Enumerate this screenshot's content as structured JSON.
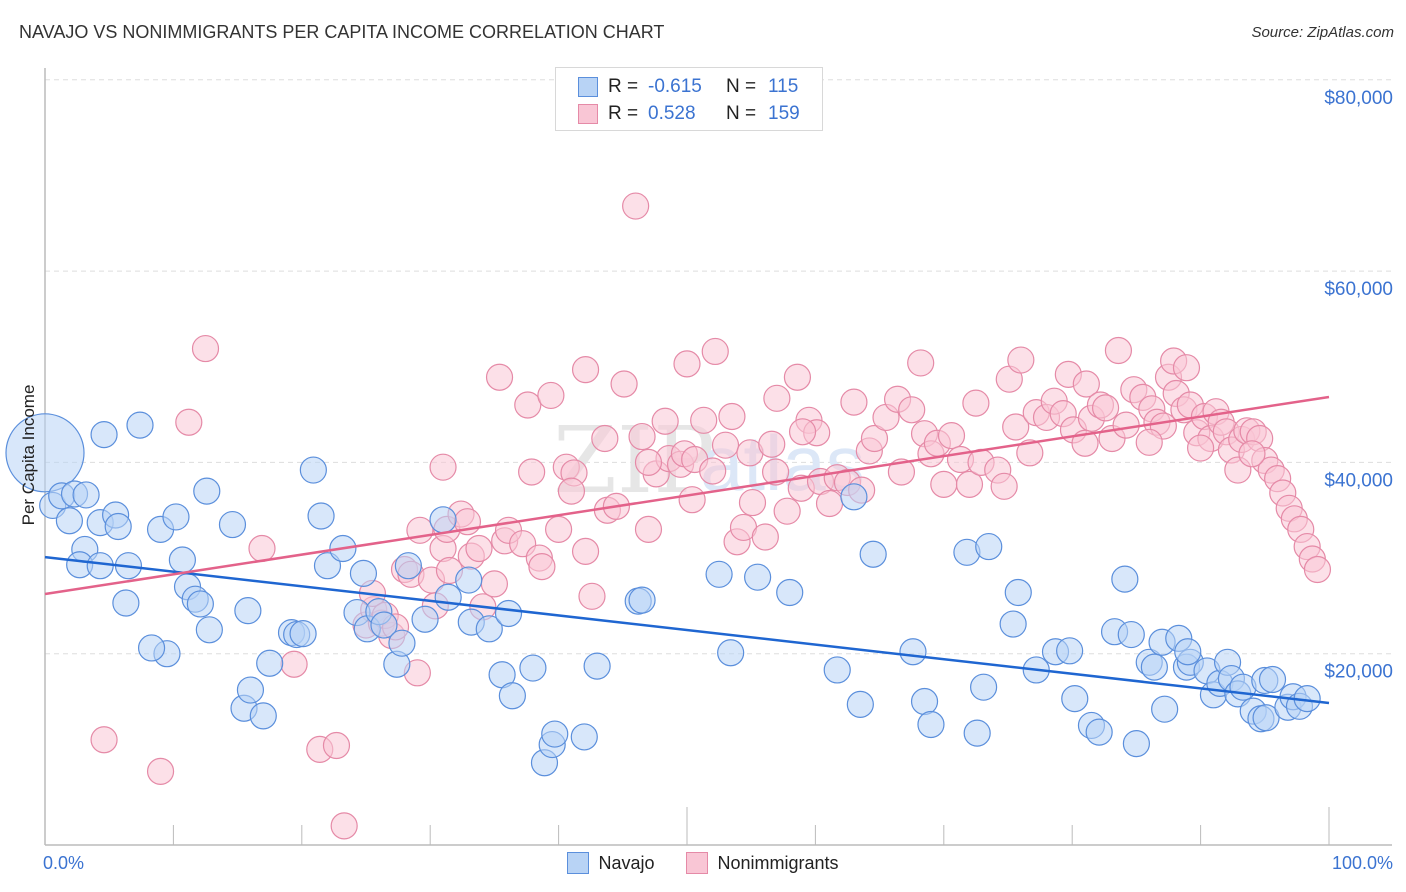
{
  "header": {
    "title": "NAVAJO VS NONIMMIGRANTS PER CAPITA INCOME CORRELATION CHART",
    "source": "Source: ZipAtlas.com"
  },
  "colors": {
    "navajo_fill": "#b8d3f5",
    "navajo_stroke": "#5b8fdc",
    "navajo_line": "#1f66d1",
    "nonimmigrants_fill": "#f9c6d5",
    "nonimmigrants_stroke": "#e58aa7",
    "nonimmigrants_line": "#e3628a",
    "axis_label": "#3b73d1"
  },
  "legend": {
    "rows": [
      {
        "series": "Navajo",
        "r_label": "R =",
        "r_value": "-0.615",
        "n_label": "N =",
        "n_value": "115"
      },
      {
        "series": "Nonimmigrants",
        "r_label": "R =",
        "r_value": "0.528",
        "n_label": "N =",
        "n_value": "159"
      }
    ],
    "bottom": [
      "Navajo",
      "Nonimmigrants"
    ]
  },
  "watermark": {
    "part1": "ZIP",
    "part2": "atlas"
  },
  "chart_data": {
    "type": "scatter",
    "title": "NAVAJO VS NONIMMIGRANTS PER CAPITA INCOME CORRELATION CHART",
    "xlabel": "",
    "ylabel": "Per Capita Income",
    "xlim": [
      0,
      100
    ],
    "ylim": [
      0,
      82000
    ],
    "x_tick_labels": [
      "0.0%",
      "100.0%"
    ],
    "y_ticks": [
      20000,
      40000,
      60000,
      80000
    ],
    "y_tick_labels": [
      "$20,000",
      "$40,000",
      "$60,000",
      "$80,000"
    ],
    "grid": true,
    "legend_position": "top-center",
    "series": [
      {
        "name": "Navajo",
        "r": -0.615,
        "n": 115,
        "trend": {
          "x": [
            0,
            100
          ],
          "y": [
            30100,
            14850
          ]
        },
        "points": [
          [
            0,
            41000,
            3
          ],
          [
            0.6,
            35500
          ],
          [
            1.3,
            36500
          ],
          [
            2.3,
            36700
          ],
          [
            3.1,
            30900
          ],
          [
            2.7,
            29300
          ],
          [
            4.3,
            29200
          ],
          [
            1.9,
            33900
          ],
          [
            4.3,
            33700
          ],
          [
            5.5,
            34500
          ],
          [
            5.7,
            33300
          ],
          [
            6.5,
            29200
          ],
          [
            3.2,
            36600
          ],
          [
            4.6,
            42900
          ],
          [
            7.4,
            43900
          ],
          [
            9.0,
            33000
          ],
          [
            10.2,
            34300
          ],
          [
            10.7,
            29800
          ],
          [
            11.1,
            27000
          ],
          [
            11.7,
            25700
          ],
          [
            12.1,
            25200
          ],
          [
            12.6,
            37000
          ],
          [
            14.6,
            33500
          ],
          [
            15.8,
            24500
          ],
          [
            6.3,
            25300
          ],
          [
            9.5,
            20000
          ],
          [
            8.3,
            20600
          ],
          [
            12.8,
            22500
          ],
          [
            15.5,
            14300
          ],
          [
            16.0,
            16200
          ],
          [
            17.0,
            13500
          ],
          [
            17.5,
            19000
          ],
          [
            19.2,
            22200
          ],
          [
            19.6,
            22000
          ],
          [
            20.1,
            22100
          ],
          [
            20.9,
            39200
          ],
          [
            21.5,
            34400
          ],
          [
            22.0,
            29200
          ],
          [
            23.2,
            31000
          ],
          [
            24.3,
            24300
          ],
          [
            24.8,
            28400
          ],
          [
            25.1,
            22600
          ],
          [
            26.0,
            24400
          ],
          [
            26.4,
            23000
          ],
          [
            27.4,
            18900
          ],
          [
            27.8,
            21100
          ],
          [
            28.3,
            29200
          ],
          [
            29.6,
            23600
          ],
          [
            31.0,
            34000
          ],
          [
            31.4,
            25900
          ],
          [
            33.0,
            27700
          ],
          [
            33.2,
            23300
          ],
          [
            34.6,
            22600
          ],
          [
            35.6,
            17800
          ],
          [
            36.1,
            24200
          ],
          [
            36.4,
            15600
          ],
          [
            38.0,
            18500
          ],
          [
            38.9,
            8600
          ],
          [
            39.5,
            10500
          ],
          [
            39.7,
            11600
          ],
          [
            42.0,
            11300
          ],
          [
            43.0,
            18700
          ],
          [
            46.2,
            25500
          ],
          [
            46.5,
            25600
          ],
          [
            52.5,
            28300
          ],
          [
            53.4,
            20100
          ],
          [
            55.5,
            28000
          ],
          [
            58.0,
            26400
          ],
          [
            61.7,
            18300
          ],
          [
            63.0,
            36400
          ],
          [
            63.5,
            14700
          ],
          [
            64.5,
            30400
          ],
          [
            67.6,
            20200
          ],
          [
            68.5,
            15000
          ],
          [
            69.0,
            12600
          ],
          [
            71.8,
            30600
          ],
          [
            72.6,
            11700
          ],
          [
            73.5,
            31200
          ],
          [
            73.1,
            16500
          ],
          [
            75.4,
            23100
          ],
          [
            75.8,
            26400
          ],
          [
            77.2,
            18300
          ],
          [
            78.7,
            20200
          ],
          [
            79.8,
            20300
          ],
          [
            80.2,
            15300
          ],
          [
            81.5,
            12500
          ],
          [
            82.1,
            11800
          ],
          [
            83.3,
            22300
          ],
          [
            84.6,
            22000
          ],
          [
            84.1,
            27800
          ],
          [
            85.0,
            10600
          ],
          [
            86.0,
            19100
          ],
          [
            86.4,
            18600
          ],
          [
            87.0,
            21200
          ],
          [
            87.2,
            14200
          ],
          [
            88.3,
            21600
          ],
          [
            88.9,
            18600
          ],
          [
            89.2,
            19100
          ],
          [
            89.0,
            20200
          ],
          [
            90.5,
            18200
          ],
          [
            91.0,
            15700
          ],
          [
            91.5,
            16900
          ],
          [
            92.1,
            19100
          ],
          [
            92.4,
            17400
          ],
          [
            92.9,
            15800
          ],
          [
            93.3,
            16500
          ],
          [
            94.1,
            14000
          ],
          [
            94.7,
            13200
          ],
          [
            95.1,
            13300
          ],
          [
            95.0,
            17200
          ],
          [
            95.6,
            17300
          ],
          [
            96.8,
            14400
          ],
          [
            97.2,
            15500
          ],
          [
            97.7,
            14500
          ],
          [
            98.3,
            15300
          ]
        ]
      },
      {
        "name": "Nonimmigrants",
        "r": 0.528,
        "n": 159,
        "trend": {
          "x": [
            0,
            100
          ],
          "y": [
            26240,
            46840
          ]
        },
        "points": [
          [
            12.5,
            51900
          ],
          [
            11.2,
            44200
          ],
          [
            4.6,
            11000
          ],
          [
            9.0,
            7700
          ],
          [
            16.9,
            31000
          ],
          [
            19.4,
            18900
          ],
          [
            21.4,
            10000
          ],
          [
            22.7,
            10400
          ],
          [
            23.3,
            2000
          ],
          [
            25.0,
            23000
          ],
          [
            25.6,
            24600
          ],
          [
            25.5,
            26300
          ],
          [
            26.2,
            23200
          ],
          [
            27.0,
            21900
          ],
          [
            26.5,
            24000
          ],
          [
            27.3,
            22800
          ],
          [
            28.0,
            28800
          ],
          [
            28.5,
            28300
          ],
          [
            29.0,
            18000
          ],
          [
            29.2,
            32900
          ],
          [
            30.1,
            27700
          ],
          [
            30.4,
            25000
          ],
          [
            31.0,
            31000
          ],
          [
            31.3,
            33000
          ],
          [
            31.0,
            39500
          ],
          [
            31.5,
            28700
          ],
          [
            32.4,
            34600
          ],
          [
            32.9,
            33800
          ],
          [
            33.2,
            30200
          ],
          [
            33.8,
            31000
          ],
          [
            34.1,
            24900
          ],
          [
            35.0,
            27300
          ],
          [
            35.4,
            48900
          ],
          [
            35.8,
            31800
          ],
          [
            36.1,
            32900
          ],
          [
            37.2,
            31500
          ],
          [
            37.6,
            46000
          ],
          [
            37.9,
            39000
          ],
          [
            38.5,
            30000
          ],
          [
            39.4,
            47000
          ],
          [
            38.7,
            29100
          ],
          [
            40.0,
            33000
          ],
          [
            40.6,
            39500
          ],
          [
            41.2,
            38900
          ],
          [
            42.1,
            30700
          ],
          [
            42.1,
            49700
          ],
          [
            42.6,
            26000
          ],
          [
            43.6,
            42500
          ],
          [
            43.8,
            35000
          ],
          [
            44.5,
            35400
          ],
          [
            45.1,
            48200
          ],
          [
            46.0,
            66800
          ],
          [
            46.5,
            42700
          ],
          [
            47.0,
            33000
          ],
          [
            47.6,
            38800
          ],
          [
            48.3,
            44300
          ],
          [
            48.6,
            40400
          ],
          [
            49.5,
            39800
          ],
          [
            49.8,
            40900
          ],
          [
            50.0,
            50300
          ],
          [
            50.4,
            36100
          ],
          [
            50.6,
            40300
          ],
          [
            51.3,
            44400
          ],
          [
            52.2,
            51600
          ],
          [
            52.0,
            39100
          ],
          [
            53.0,
            41800
          ],
          [
            53.5,
            44800
          ],
          [
            53.9,
            31700
          ],
          [
            54.4,
            33200
          ],
          [
            54.9,
            41000
          ],
          [
            55.1,
            35800
          ],
          [
            56.1,
            32200
          ],
          [
            56.6,
            41900
          ],
          [
            56.9,
            39000
          ],
          [
            57.0,
            46700
          ],
          [
            57.8,
            34900
          ],
          [
            58.6,
            48900
          ],
          [
            58.9,
            37300
          ],
          [
            59.5,
            44400
          ],
          [
            60.1,
            43100
          ],
          [
            60.4,
            38000
          ],
          [
            61.1,
            35700
          ],
          [
            61.7,
            38400
          ],
          [
            62.5,
            37900
          ],
          [
            63.0,
            46300
          ],
          [
            63.6,
            37100
          ],
          [
            64.2,
            41200
          ],
          [
            64.6,
            42500
          ],
          [
            65.5,
            44700
          ],
          [
            66.4,
            46600
          ],
          [
            66.7,
            39000
          ],
          [
            67.5,
            45500
          ],
          [
            68.2,
            50400
          ],
          [
            68.5,
            43000
          ],
          [
            69.0,
            40900
          ],
          [
            69.5,
            42000
          ],
          [
            70.0,
            37700
          ],
          [
            70.6,
            42800
          ],
          [
            71.3,
            40300
          ],
          [
            72.0,
            37700
          ],
          [
            72.5,
            46200
          ],
          [
            72.9,
            40000
          ],
          [
            74.2,
            39200
          ],
          [
            74.7,
            37500
          ],
          [
            75.1,
            48700
          ],
          [
            75.6,
            43700
          ],
          [
            76.0,
            50700
          ],
          [
            76.7,
            41000
          ],
          [
            77.2,
            45200
          ],
          [
            78.0,
            44700
          ],
          [
            78.6,
            46400
          ],
          [
            79.3,
            45100
          ],
          [
            79.7,
            49200
          ],
          [
            80.1,
            43400
          ],
          [
            81.1,
            48200
          ],
          [
            81.5,
            44600
          ],
          [
            82.2,
            46000
          ],
          [
            82.6,
            45700
          ],
          [
            83.1,
            42500
          ],
          [
            83.6,
            51700
          ],
          [
            84.2,
            43900
          ],
          [
            84.8,
            47600
          ],
          [
            85.5,
            46800
          ],
          [
            86.2,
            45600
          ],
          [
            86.6,
            44200
          ],
          [
            87.1,
            43800
          ],
          [
            87.5,
            48900
          ],
          [
            87.9,
            50600
          ],
          [
            88.1,
            47200
          ],
          [
            88.7,
            45500
          ],
          [
            88.9,
            49900
          ],
          [
            89.2,
            46000
          ],
          [
            89.7,
            43100
          ],
          [
            90.3,
            44800
          ],
          [
            90.8,
            42500
          ],
          [
            91.2,
            45300
          ],
          [
            91.6,
            44200
          ],
          [
            92.0,
            43200
          ],
          [
            92.4,
            41300
          ],
          [
            92.9,
            39200
          ],
          [
            93.2,
            42400
          ],
          [
            93.6,
            43300
          ],
          [
            94.1,
            43200
          ],
          [
            94.6,
            42500
          ],
          [
            95.0,
            40200
          ],
          [
            95.5,
            39200
          ],
          [
            96.0,
            38300
          ],
          [
            96.4,
            36800
          ],
          [
            96.9,
            35200
          ],
          [
            97.3,
            34100
          ],
          [
            97.8,
            33000
          ],
          [
            98.3,
            31200
          ],
          [
            98.7,
            29900
          ],
          [
            99.1,
            28800
          ],
          [
            86.0,
            42100
          ],
          [
            90.0,
            41500
          ],
          [
            94.0,
            40900
          ],
          [
            81.0,
            42000
          ],
          [
            59.0,
            43200
          ],
          [
            47.0,
            40000
          ],
          [
            41.0,
            37000
          ]
        ]
      }
    ]
  }
}
